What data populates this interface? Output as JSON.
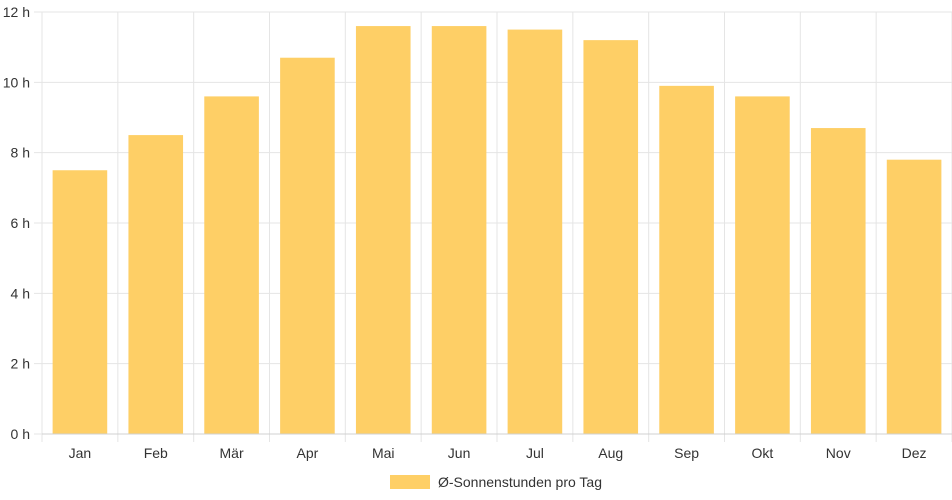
{
  "chart_data": {
    "type": "bar",
    "categories": [
      "Jan",
      "Feb",
      "Mär",
      "Apr",
      "Mai",
      "Jun",
      "Jul",
      "Aug",
      "Sep",
      "Okt",
      "Nov",
      "Dez"
    ],
    "series": [
      {
        "name": "Ø-Sonnenstunden pro Tag",
        "values": [
          7.5,
          8.5,
          9.6,
          10.7,
          11.6,
          11.6,
          11.5,
          11.2,
          9.9,
          9.6,
          8.7,
          7.8
        ]
      }
    ],
    "ylim": [
      0,
      12
    ],
    "yticks": [
      0,
      2,
      4,
      6,
      8,
      10,
      12
    ],
    "ytick_labels": [
      "0 h",
      "2 h",
      "4 h",
      "6 h",
      "8 h",
      "10 h",
      "12 h"
    ],
    "grid": true,
    "legend_position": "bottom",
    "bar_color": "#fecf66"
  }
}
